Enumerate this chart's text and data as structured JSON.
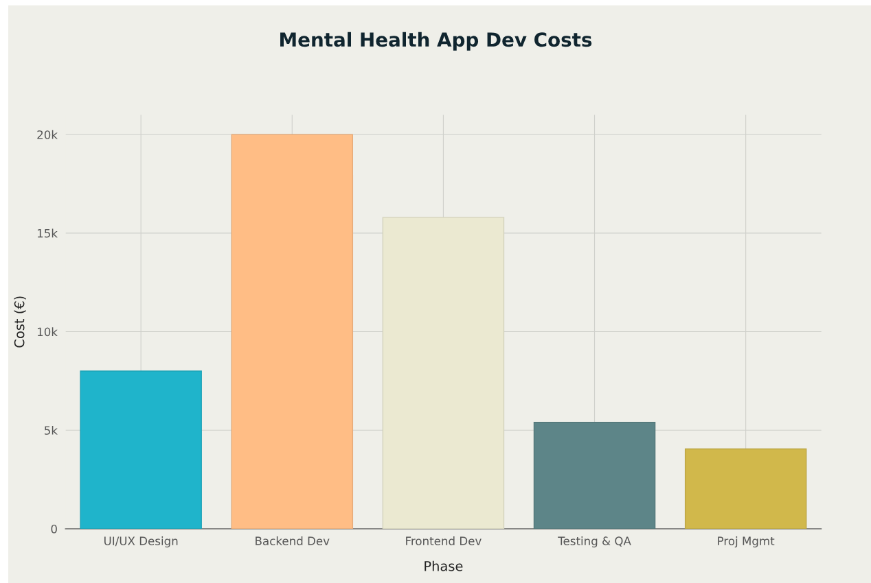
{
  "chart_data": {
    "type": "bar",
    "title": "Mental Health App Dev Costs",
    "xlabel": "Phase",
    "ylabel": "Cost (€)",
    "categories": [
      "UI/UX Design",
      "Backend Dev",
      "Frontend Dev",
      "Testing & QA",
      "Proj Mgmt"
    ],
    "values": [
      8000,
      20000,
      15800,
      5400,
      4050
    ],
    "colors": [
      "#1fb4cb",
      "#ffbd85",
      "#ebe9d1",
      "#5d8588",
      "#d1b84b"
    ],
    "ylim": [
      0,
      21000
    ],
    "yticks": [
      {
        "value": 0,
        "label": "0"
      },
      {
        "value": 5000,
        "label": "5k"
      },
      {
        "value": 10000,
        "label": "10k"
      },
      {
        "value": 15000,
        "label": "15k"
      },
      {
        "value": 20000,
        "label": "20k"
      }
    ],
    "grid": true
  }
}
